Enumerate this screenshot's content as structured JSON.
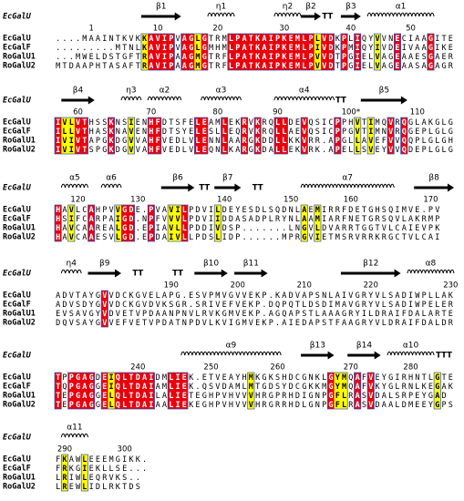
{
  "blocks": [
    {
      "title": "EcGalU",
      "structure": [
        "β1",
        "η1",
        "η2",
        "β2",
        "TT",
        "β3",
        "α1"
      ],
      "ruler": [
        1,
        10,
        20,
        30,
        40,
        50
      ],
      "rows": [
        {
          "name": "EcGalU",
          "sequence": "....MAAINTKVKKAVIPVAGLGTRMLPATKAIPKEMLPLVDKPLIQYVVNECIAAGITE"
        },
        {
          "name": "EcGalF",
          "sequence": ".........MTNLKAVIPVAGLGMHMLPATKAIPKEMLPIVDKPMIQYIVDEIVAAGIKE"
        },
        {
          "name": "RoGalU1",
          "sequence": "...MWELDSTGFTRAVIPAAGMGTRFLPATKAIPKEMLPVVDTPGIELVAGEAAESGAER"
        },
        {
          "name": "RoGalU2",
          "sequence": "MTDAAPHTASAFTRAVIPAAGMGTRFLPATKAIPKEMLPVVDTPGIELVAGEAASAGAGR"
        }
      ]
    },
    {
      "title": "EcGalU",
      "structure": [
        "β4",
        "η3",
        "α2",
        "α3",
        "α4",
        "TT",
        "β5"
      ],
      "ruler": [
        60,
        70,
        80,
        90,
        {
          "value": 100,
          "label": "100*"
        },
        110
      ],
      "rows": [
        {
          "name": "EcGalU",
          "sequence": "IVLVTHSSKNSIENHFDTSFELEAMLEKRVKRQLLDEVQSICPPHVTIMQVRQGLAKGLG"
        },
        {
          "name": "EcGalF",
          "sequence": "ILLVTHASKNAVENHFDTSYELESLLEQRVKRQLLAEVQSICPPGVTIMNVRQGEPLGLG"
        },
        {
          "name": "RoGalU1",
          "sequence": "IVIVTAPGKDGVVAHFVEDLVLENNLAARGKDDLLKKVRR.APGLLAVEFVVQQPLGLGH"
        },
        {
          "name": "RoGalU2",
          "sequence": "IVIVTSPGKDGVVAHFVEDLVLEQNLKARGKDALLEKVRK.APELLSVEYVVQDEPLGLG"
        }
      ]
    },
    {
      "title": "EcGalU",
      "structure": [
        "α5",
        "α6",
        "β6",
        "TT",
        "β7",
        "TT",
        "α7",
        "β8"
      ],
      "ruler": [
        120,
        130,
        140,
        150,
        160,
        170
      ],
      "rows": [
        {
          "name": "EcGalU",
          "sequence": "HAVLCAHPVVGDE.PVAVILPDVILDEYESDLSQDNLAEMIRRFDETGHSQIMVE.PV"
        },
        {
          "name": "EcGalF",
          "sequence": "HSIFCARPAIGD.NPFVVVLPDVIIDDASADPLRYNLAAMIARFNETGRSQVLAKRMP"
        },
        {
          "name": "RoGalU1",
          "sequence": "HAVCAAREALGD.EPIAVLLPDDIVDSP.......LNGVLDVARRTGGTVLCAIEVPK"
        },
        {
          "name": "RoGalU2",
          "sequence": "HAVCAAESVLGD.EPDAIVLLPDSLIDP......MPRGVIETMSRVRRKRGCTVLCAI"
        }
      ]
    },
    {
      "title": "EcGalU",
      "structure": [
        "η4",
        "β9",
        "TT",
        "TT",
        "β10",
        "β11",
        "β12",
        "α8"
      ],
      "ruler": [
        190,
        200,
        210,
        220,
        230
      ],
      "rows": [
        {
          "name": "EcGalU",
          "sequence": "ADVTAYGVVDCKGVELAPG.ESVPMVGVVEKP.KADVAPSNLAIVGRYVLSADIWPLLAK"
        },
        {
          "name": "EcGalF",
          "sequence": "ADVSDYGVVDCKGVDVKSGR.SRIVEFVEKP.DQPQTLDSDIMAVGRYVLSADIWPELER"
        },
        {
          "name": "RoGalU1",
          "sequence": "EVSAVGYVDVETVPDAANPNVLRVKGMVEKP.AGQAPSTLAAAGRYILDRAIFDALARTE"
        },
        {
          "name": "RoGalU2",
          "sequence": "DQVSAYGVVEFVETVPDATNPDVLKVIGMVEKP.AIEDAPSTFAAGRYVLDRAIFDALDR"
        }
      ]
    },
    {
      "title": "EcGalU",
      "structure": [
        "α9",
        "β13",
        "β14",
        "α10",
        "TTT"
      ],
      "ruler": [
        240,
        250,
        260,
        270,
        280
      ],
      "rows": [
        {
          "name": "EcGalU",
          "sequence": "TPPGAGDEIQLTDAIDMLIEK.ETVEAYHMKGKSHDCGNKLGYMQAFVEYGIRHNTLGTE"
        },
        {
          "name": "EcGalF",
          "sequence": "TQPGAGGEIQLTDAIAMLIEK.QSVDAMLMTGDSYDCGKKMGYMQAFVKYGLRNLKEGAK"
        },
        {
          "name": "RoGalU1",
          "sequence": "TEPGAGGELQLTDAILALIETEGHPVHVVVHRGPRHDIGNPGFLRASVDALSRPEYGAD"
        },
        {
          "name": "RoGalU2",
          "sequence": "TEPGAGGELQLTDAIAALIEKEGHPVHVVVHRGRRHDLGNPGFLRASVDAALDMEEYGPS"
        }
      ]
    },
    {
      "title": "EcGalU",
      "structure": [
        "α11"
      ],
      "ruler": [
        290,
        300
      ],
      "rows": [
        {
          "name": "EcGalU",
          "sequence": "FKAWLEEEMGIKK."
        },
        {
          "name": "EcGalF",
          "sequence": "FRKGIEKLLSE..."
        },
        {
          "name": "RoGalU1",
          "sequence": "LRIWLEQRVKS.."
        },
        {
          "name": "RoGalU2",
          "sequence": "LREWLIDLRKTDS"
        }
      ]
    }
  ]
}
